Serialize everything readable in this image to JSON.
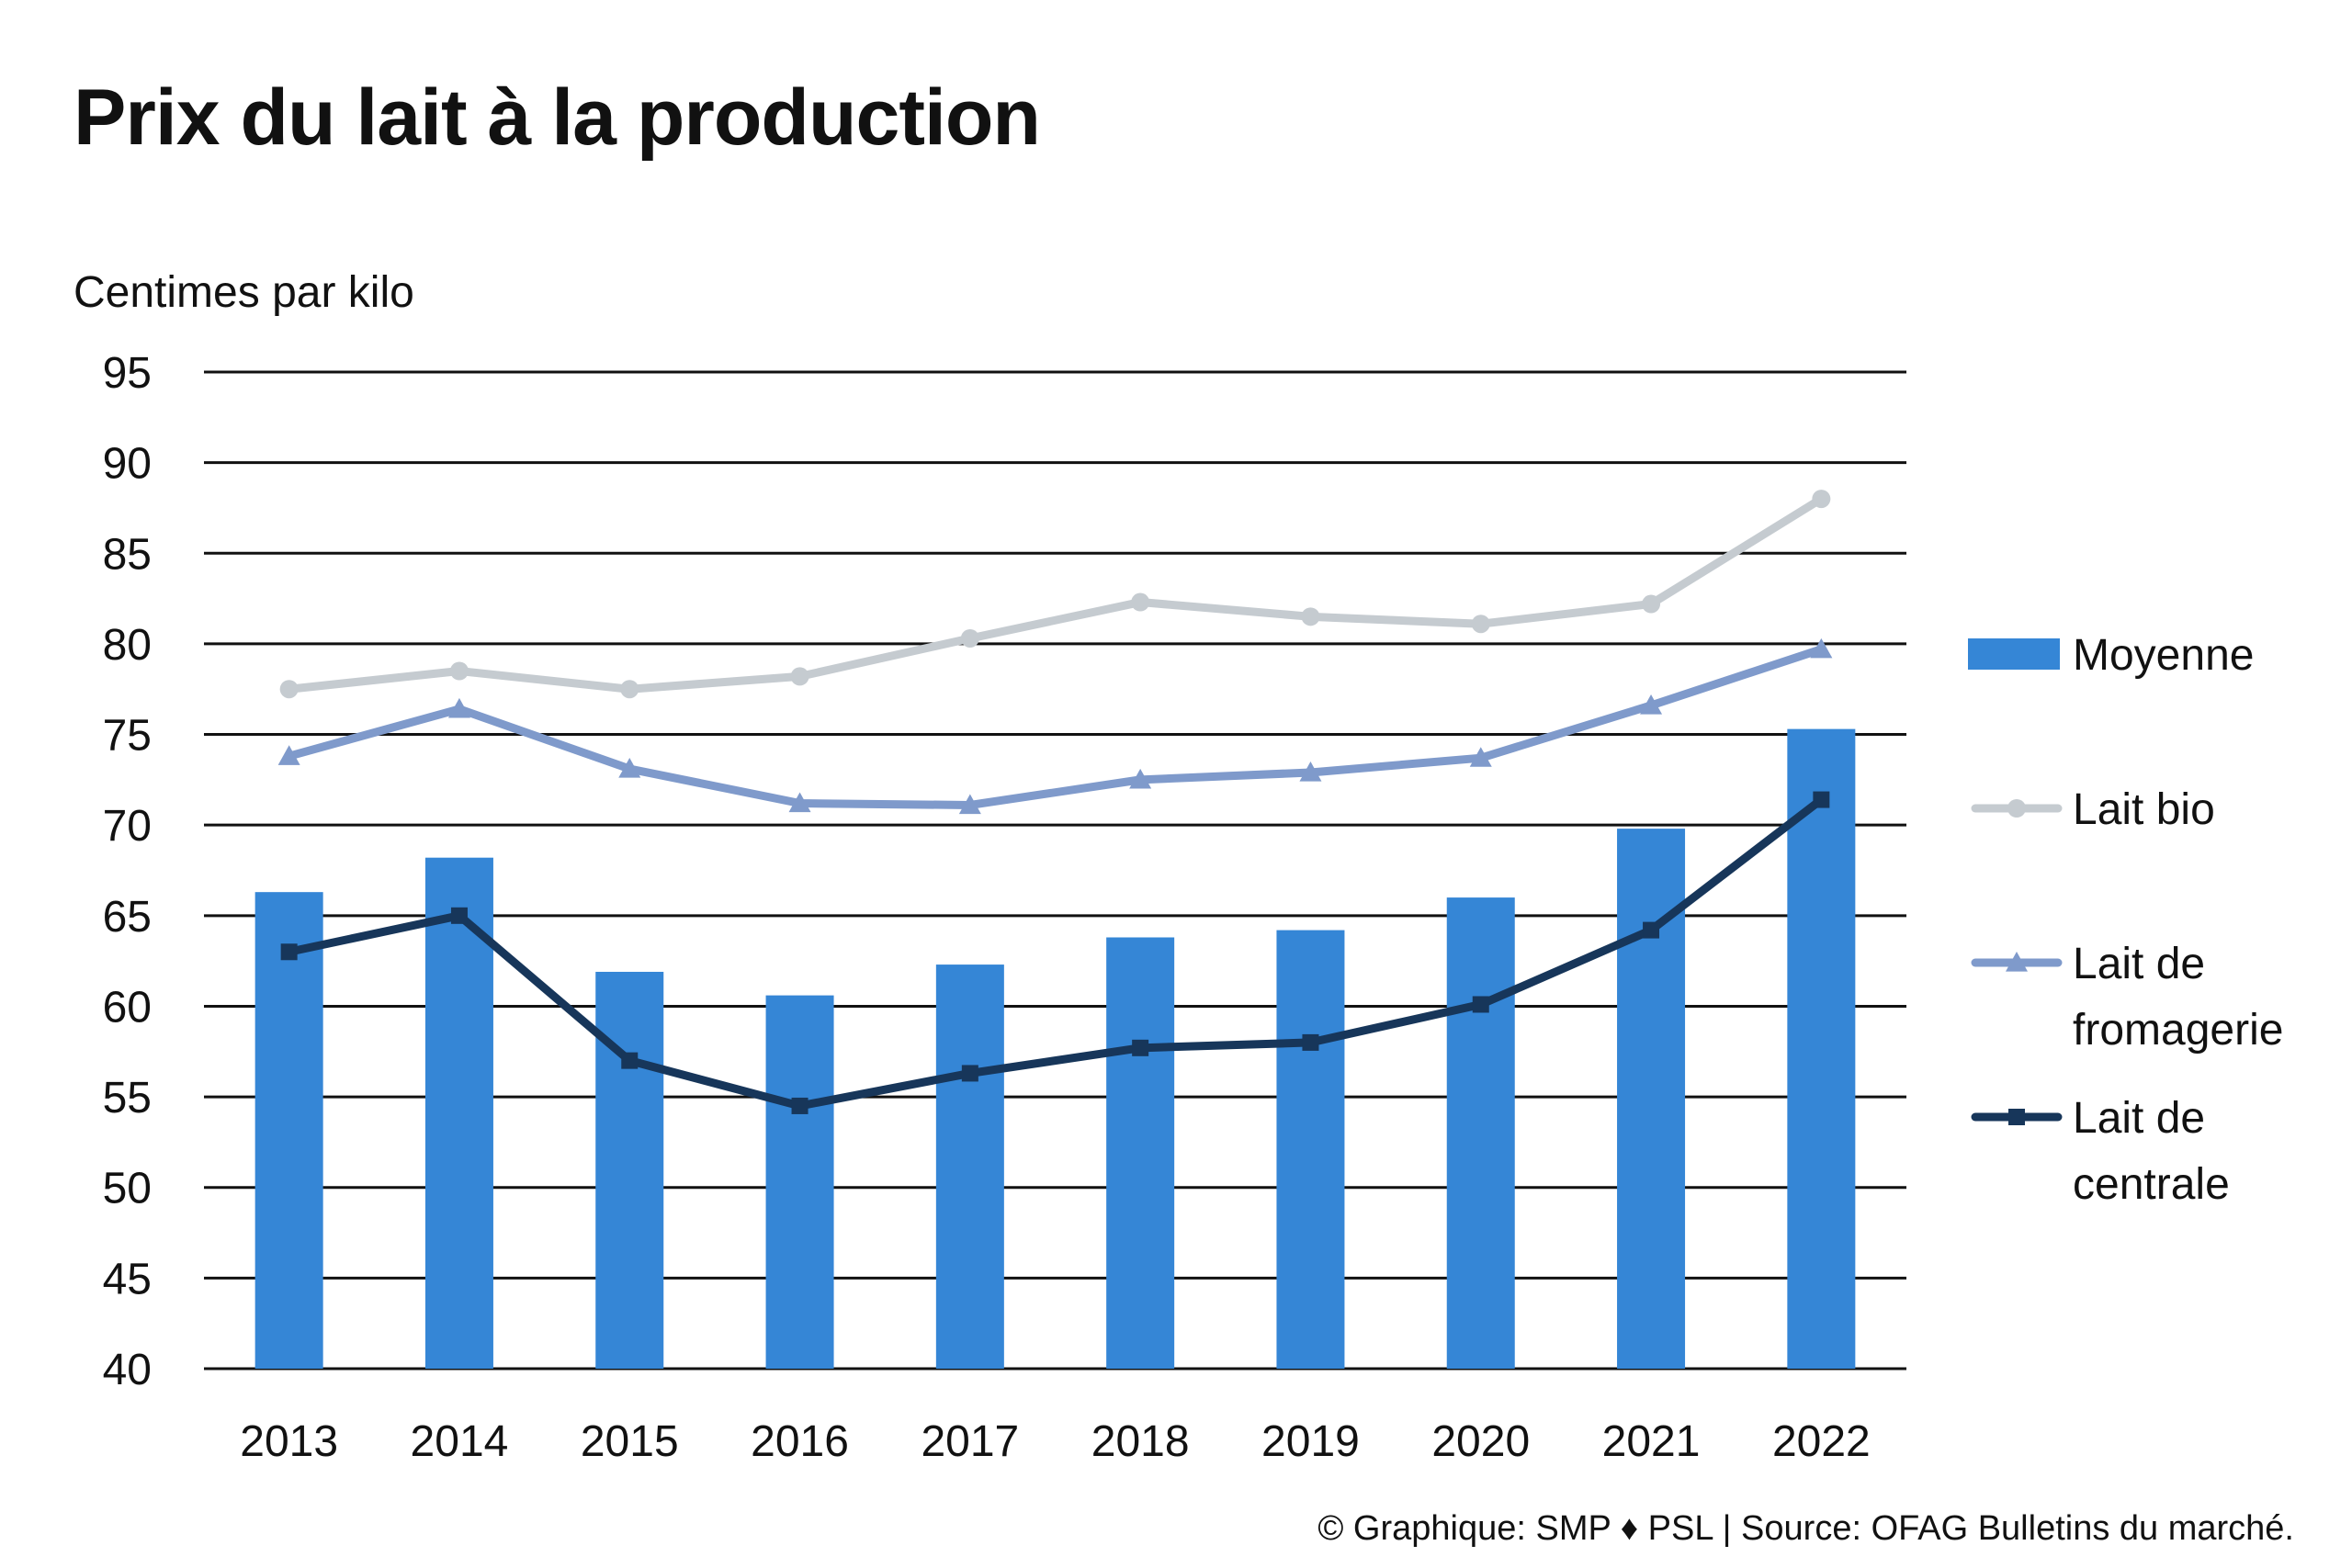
{
  "chart_data": {
    "type": "bar",
    "title": "Prix du lait à la production",
    "ylabel": "Centimes par kilo",
    "xlabel": "",
    "ylim": [
      40,
      95
    ],
    "yticks": [
      40,
      45,
      50,
      55,
      60,
      65,
      70,
      75,
      80,
      85,
      90,
      95
    ],
    "categories": [
      "2013",
      "2014",
      "2015",
      "2016",
      "2017",
      "2018",
      "2019",
      "2020",
      "2021",
      "2022"
    ],
    "grid": true,
    "legend_position": "right",
    "series": [
      {
        "name": "Moyenne",
        "kind": "bar",
        "color": "#3586D6",
        "marker": "none",
        "values": [
          66.3,
          68.2,
          61.9,
          60.6,
          62.3,
          63.8,
          64.2,
          66.0,
          69.8,
          75.3
        ]
      },
      {
        "name": "Lait bio",
        "kind": "line",
        "color": "#C5CBD0",
        "marker": "circle",
        "values": [
          77.5,
          78.5,
          77.5,
          78.2,
          80.3,
          82.3,
          81.5,
          81.1,
          82.2,
          88.0
        ]
      },
      {
        "name": "Lait de fromagerie",
        "legend_lines": [
          "Lait de",
          "fromagerie"
        ],
        "kind": "line",
        "color": "#7F9ACB",
        "marker": "triangle",
        "values": [
          73.8,
          76.4,
          73.1,
          71.2,
          71.1,
          72.5,
          72.9,
          73.7,
          76.6,
          79.7
        ]
      },
      {
        "name": "Lait de centrale",
        "legend_lines": [
          "Lait de",
          "centrale"
        ],
        "kind": "line",
        "color": "#17365A",
        "marker": "square",
        "values": [
          63.0,
          65.0,
          57.0,
          54.5,
          56.3,
          57.7,
          58.0,
          60.1,
          64.2,
          71.4
        ]
      }
    ]
  },
  "footer": "© Graphique: SMP ♦ PSL | Source: OFAG Bulletins du marché."
}
